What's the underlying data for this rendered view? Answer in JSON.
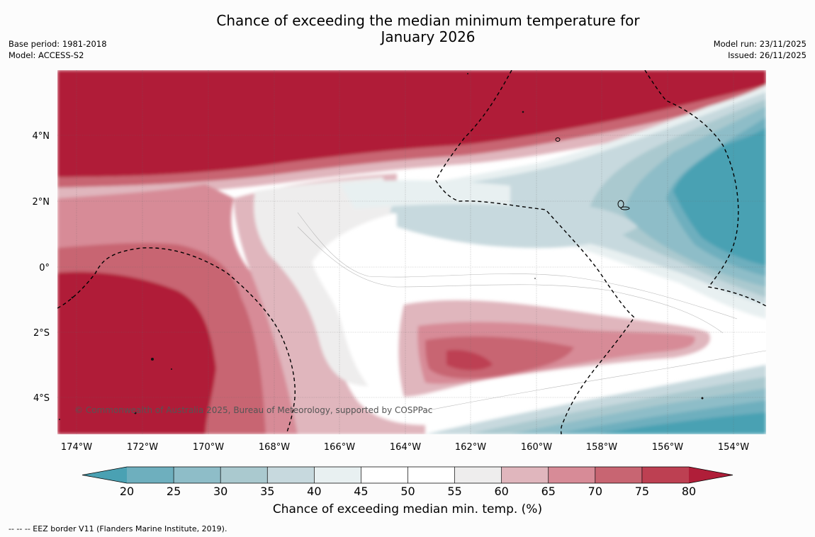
{
  "title_line1": "Chance of exceeding the median minimum temperature for",
  "title_line2": "January 2026",
  "base_period": "Base period: 1981-2018",
  "model": "Model: ACCESS-S2",
  "model_run": "Model run: 23/11/2025",
  "issued": "Issued: 26/11/2025",
  "copyright": "© Commonwealth of Australia 2025, Bureau of Meteorology, supported by COSPPac",
  "lon_labels": [
    "174°W",
    "172°W",
    "170°W",
    "168°W",
    "166°W",
    "164°W",
    "162°W",
    "160°W",
    "158°W",
    "156°W",
    "154°W"
  ],
  "lat_labels": [
    "4°N",
    "2°N",
    "0°",
    "2°S",
    "4°S"
  ],
  "colorbar": {
    "ticks": [
      "20",
      "25",
      "30",
      "35",
      "40",
      "45",
      "50",
      "55",
      "60",
      "65",
      "70",
      "75",
      "80"
    ],
    "colors": [
      "#4aa1b3",
      "#6eafbe",
      "#8ebdc8",
      "#aac9cf",
      "#c7d9de",
      "#e8f0f1",
      "#ffffff",
      "#ffffff",
      "#eeeded",
      "#e0b6bd",
      "#d78b97",
      "#c86572",
      "#bd4052",
      "#b01e39"
    ],
    "label": "Chance of exceeding median min. temp. (%)"
  },
  "footnote": "--  --  -- EEZ border V11 (Flanders Marine Institute, 2019)."
}
